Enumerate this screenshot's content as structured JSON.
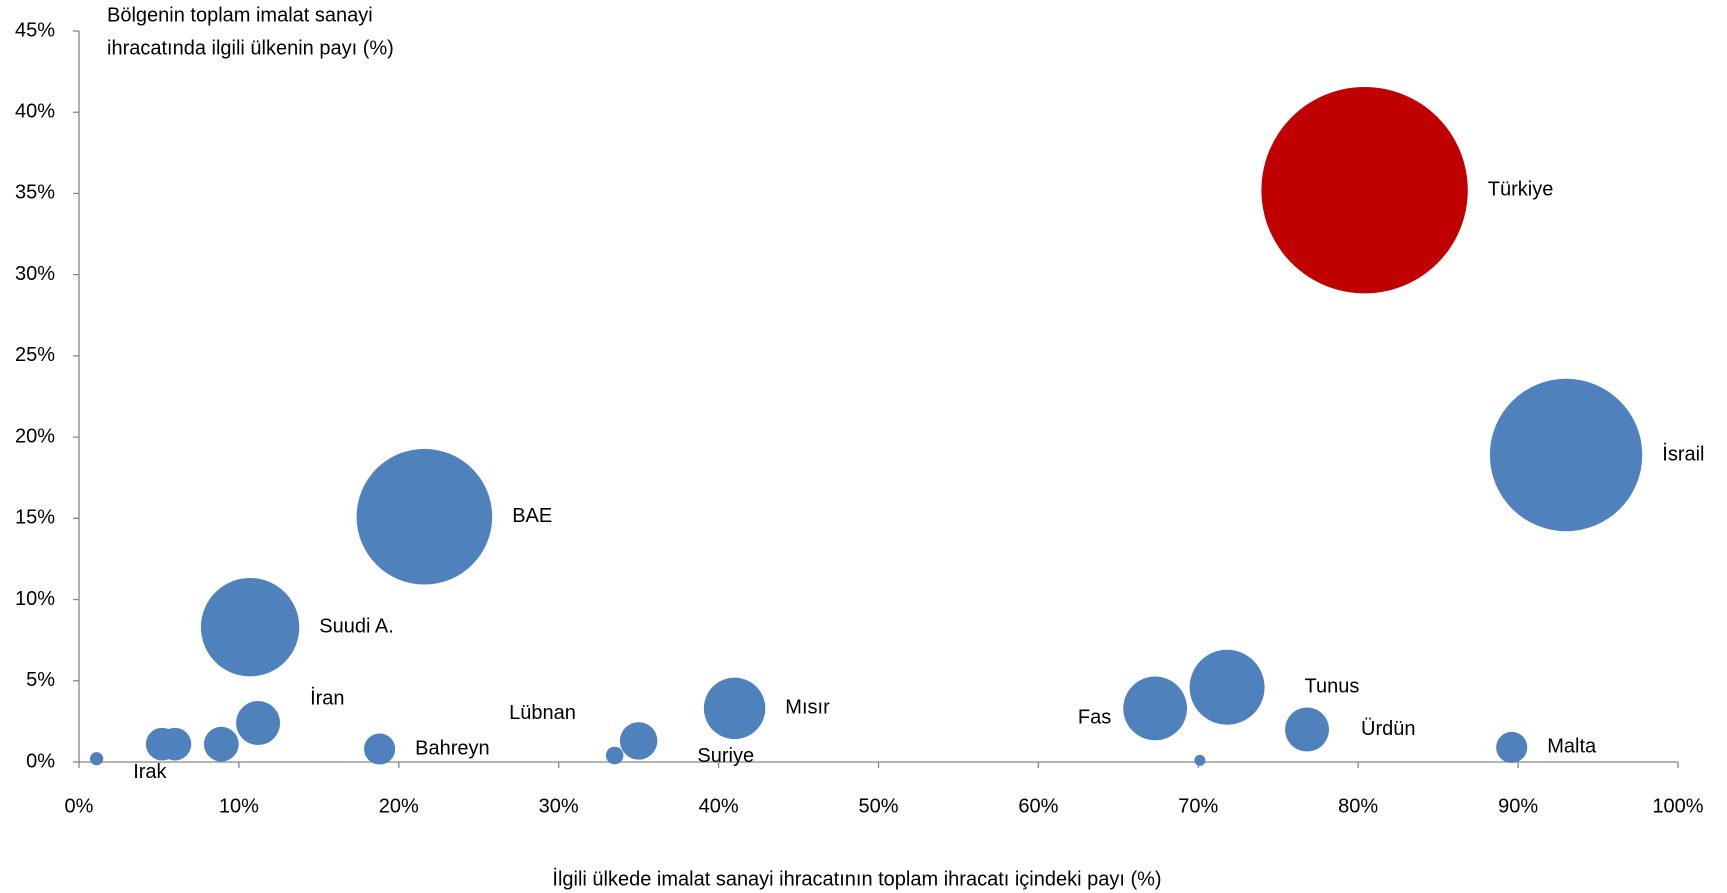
{
  "chart_data": {
    "type": "bubble",
    "y_title_lines": [
      "Bölgenin toplam imalat sanayi",
      "ihracatında ilgili ülkenin payı (%)"
    ],
    "x_label": "İlgili ülkede imalat sanayi ihracatının toplam ihracatı içindeki payı (%)",
    "labels": [
      "Irak",
      null,
      null,
      null,
      "İran",
      "Suudi A.",
      "BAE",
      "Bahreyn",
      "Lübnan",
      "Suriye",
      "Mısır",
      "Fas",
      null,
      "Tunus",
      "Ürdün",
      "Türkiye",
      "Malta",
      "İsrail"
    ],
    "x": [
      1.1,
      5.2,
      6.0,
      8.9,
      11.2,
      10.7,
      21.6,
      18.8,
      33.5,
      35.0,
      41.0,
      67.3,
      70.1,
      71.8,
      76.8,
      80.4,
      89.6,
      93.0
    ],
    "values": [
      0.2,
      1.1,
      1.1,
      1.1,
      2.4,
      8.3,
      15.1,
      0.8,
      0.4,
      1.3,
      3.3,
      3.3,
      0.1,
      4.6,
      2.0,
      35.2,
      0.9,
      18.9
    ],
    "sizes": [
      0.36,
      2.2,
      2.2,
      2.5,
      4,
      20,
      38,
      2,
      0.64,
      2.9,
      7.8,
      8.4,
      0.25,
      11.6,
      4,
      88,
      2,
      48
    ],
    "point_colors": [
      "#4f81bd",
      "#4f81bd",
      "#4f81bd",
      "#4f81bd",
      "#4f81bd",
      "#4f81bd",
      "#4f81bd",
      "#4f81bd",
      "#4f81bd",
      "#4f81bd",
      "#4f81bd",
      "#4f81bd",
      "#4f81bd",
      "#4f81bd",
      "#4f81bd",
      "#c00000",
      "#4f81bd",
      "#4f81bd"
    ],
    "xlim": [
      0,
      100
    ],
    "xticks": [
      {
        "value": 0,
        "label": "0%"
      },
      {
        "value": 10,
        "label": "10%"
      },
      {
        "value": 20,
        "label": "20%"
      },
      {
        "value": 30,
        "label": "30%"
      },
      {
        "value": 40,
        "label": "40%"
      },
      {
        "value": 50,
        "label": "50%"
      },
      {
        "value": 60,
        "label": "60%"
      },
      {
        "value": 70,
        "label": "70%"
      },
      {
        "value": 80,
        "label": "80%"
      },
      {
        "value": 90,
        "label": "90%"
      },
      {
        "value": 100,
        "label": "100%"
      }
    ],
    "ylim": [
      0,
      45
    ],
    "yticks": [
      {
        "value": 0,
        "label": "0%"
      },
      {
        "value": 5,
        "label": "5%"
      },
      {
        "value": 10,
        "label": "10%"
      },
      {
        "value": 15,
        "label": "15%"
      },
      {
        "value": 20,
        "label": "20%"
      },
      {
        "value": 25,
        "label": "25%"
      },
      {
        "value": 30,
        "label": "30%"
      },
      {
        "value": 35,
        "label": "35%"
      },
      {
        "value": 40,
        "label": "40%"
      },
      {
        "value": 45,
        "label": "45%"
      }
    ]
  }
}
